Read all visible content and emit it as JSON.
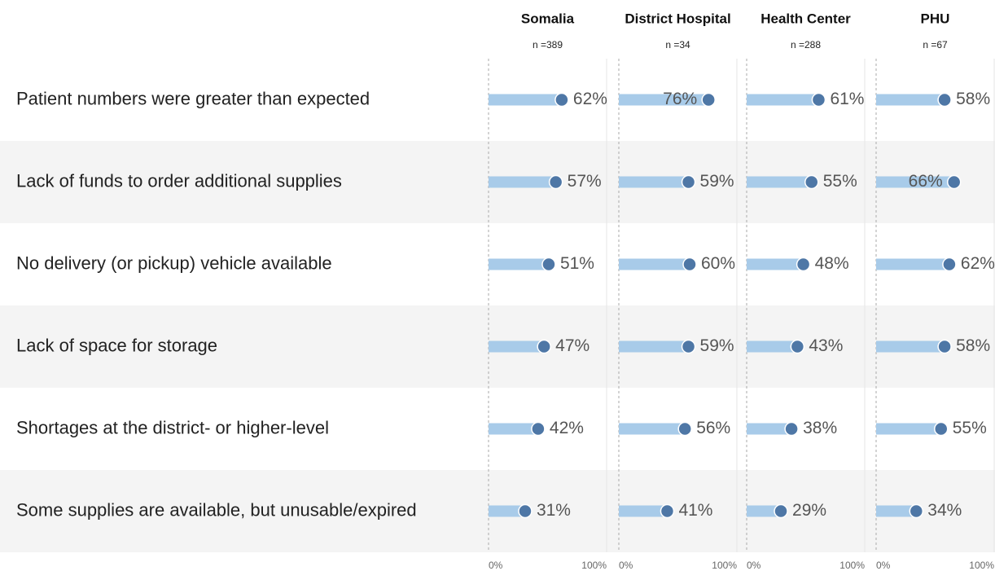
{
  "chart_data": {
    "type": "lollipop-bar",
    "categories": [
      "Patient numbers were greater than expected",
      "Lack of funds to order additional supplies",
      "No delivery (or pickup) vehicle available",
      "Lack of space for storage",
      "Shortages at the district- or higher-level",
      "Some supplies are available, but unusable/expired"
    ],
    "series": [
      {
        "name": "Somalia",
        "subtitle": "n =389",
        "values": [
          62,
          57,
          51,
          47,
          42,
          31
        ],
        "value_labels": [
          "62%",
          "57%",
          "51%",
          "47%",
          "42%",
          "31%"
        ]
      },
      {
        "name": "District Hospital",
        "subtitle": "n =34",
        "values": [
          76,
          59,
          60,
          59,
          56,
          41
        ],
        "value_labels": [
          "76%",
          "59%",
          "60%",
          "59%",
          "56%",
          "41%"
        ]
      },
      {
        "name": "Health Center",
        "subtitle": "n =288",
        "values": [
          61,
          55,
          48,
          43,
          38,
          29
        ],
        "value_labels": [
          "61%",
          "55%",
          "48%",
          "43%",
          "38%",
          "29%"
        ]
      },
      {
        "name": "PHU",
        "subtitle": "n =67",
        "values": [
          58,
          66,
          62,
          58,
          55,
          34
        ],
        "value_labels": [
          "58%",
          "66%",
          "62%",
          "58%",
          "55%",
          "34%"
        ]
      }
    ],
    "xlim": [
      0,
      100
    ],
    "xticks": [
      {
        "value": 0,
        "label": "0%"
      },
      {
        "value": 100,
        "label": "100%"
      }
    ],
    "bar_color": "#a8cbe9",
    "dot_color": "#4e77a6"
  }
}
